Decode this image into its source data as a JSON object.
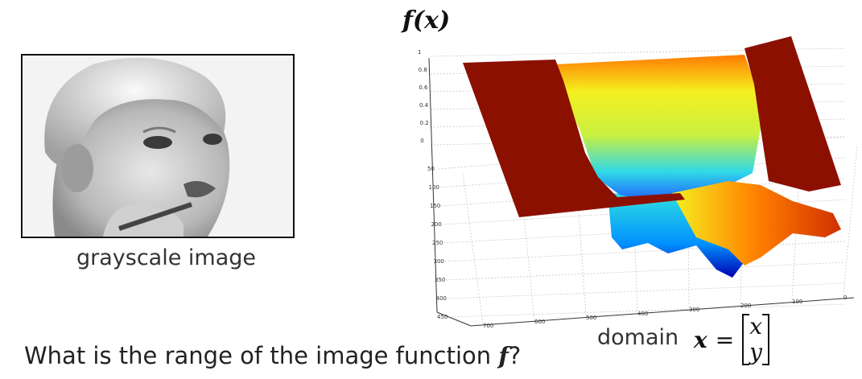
{
  "left_panel": {
    "image_caption": "grayscale image"
  },
  "plot": {
    "title": "f(x)",
    "z_ticks": [
      "1",
      "0.8",
      "0.6",
      "0.4",
      "0.2",
      "0"
    ],
    "y_ticks": [
      "50",
      "100",
      "150",
      "200",
      "250",
      "300",
      "350",
      "400",
      "450"
    ],
    "x_ticks": [
      "700",
      "600",
      "500",
      "400",
      "300",
      "200",
      "100",
      "0"
    ],
    "colormap": [
      "#0000b0",
      "#00a0ff",
      "#30e0e0",
      "#f0f020",
      "#ff8000",
      "#8b1000"
    ]
  },
  "domain": {
    "label": "domain",
    "var": "x",
    "equals": "=",
    "components": [
      "x",
      "y"
    ]
  },
  "question": {
    "prefix": "What is the range of the image function ",
    "symbol": "f",
    "suffix": "?"
  }
}
